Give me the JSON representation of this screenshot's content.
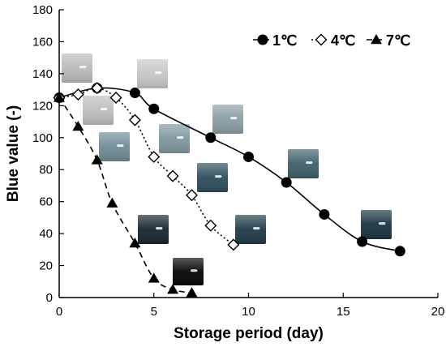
{
  "chart_data": {
    "type": "line",
    "xlabel": "Storage period (day)",
    "ylabel": "Blue value (-)",
    "xlim": [
      0,
      20
    ],
    "ylim": [
      0,
      180
    ],
    "xticks": [
      0,
      5,
      10,
      15,
      20
    ],
    "yticks": [
      0,
      20,
      40,
      60,
      80,
      100,
      120,
      140,
      160,
      180
    ],
    "grid": false,
    "legend_position": "top-right",
    "series": [
      {
        "name": "1℃",
        "marker": "circle-filled",
        "line": "solid",
        "color": "#000000",
        "x": [
          0,
          2,
          4,
          5,
          8,
          10,
          12,
          14,
          16,
          18
        ],
        "y": [
          125,
          131,
          128,
          118,
          100,
          88,
          72,
          52,
          35,
          29
        ]
      },
      {
        "name": "4℃",
        "marker": "diamond-open",
        "line": "dotted",
        "color": "#000000",
        "x": [
          0,
          1,
          2,
          3,
          4,
          5,
          6,
          7,
          8,
          9.2
        ],
        "y": [
          125,
          127,
          131,
          125,
          111,
          88,
          76,
          64,
          45,
          33
        ]
      },
      {
        "name": "7℃",
        "marker": "triangle-filled",
        "line": "dashed",
        "color": "#000000",
        "x": [
          0,
          1,
          2,
          2.8,
          4,
          5,
          6,
          7
        ],
        "y": [
          125,
          107,
          86,
          59,
          34,
          12,
          5,
          3
        ]
      }
    ]
  },
  "photo_insets": [
    {
      "name": "day0-photo",
      "color": "#b9b9b9"
    },
    {
      "name": "day2-photo-a",
      "color": "#c6c6c4"
    },
    {
      "name": "day2-photo-b",
      "color": "#bdbdbd"
    },
    {
      "name": "4c-day3-photo",
      "color": "#6f8b95"
    },
    {
      "name": "4c-day6-photo",
      "color": "#7f979f"
    },
    {
      "name": "1c-day9-photo",
      "color": "#8a9ea3"
    },
    {
      "name": "4c-day8-photo",
      "color": "#2c4d5a"
    },
    {
      "name": "1c-day13-photo",
      "color": "#3d5f68"
    },
    {
      "name": "7c-day5-photo",
      "color": "#16262c"
    },
    {
      "name": "4c-day10-photo",
      "color": "#1f3b47"
    },
    {
      "name": "1c-day17-photo",
      "color": "#19343f"
    },
    {
      "name": "7c-day7-photo",
      "color": "#050505"
    }
  ]
}
